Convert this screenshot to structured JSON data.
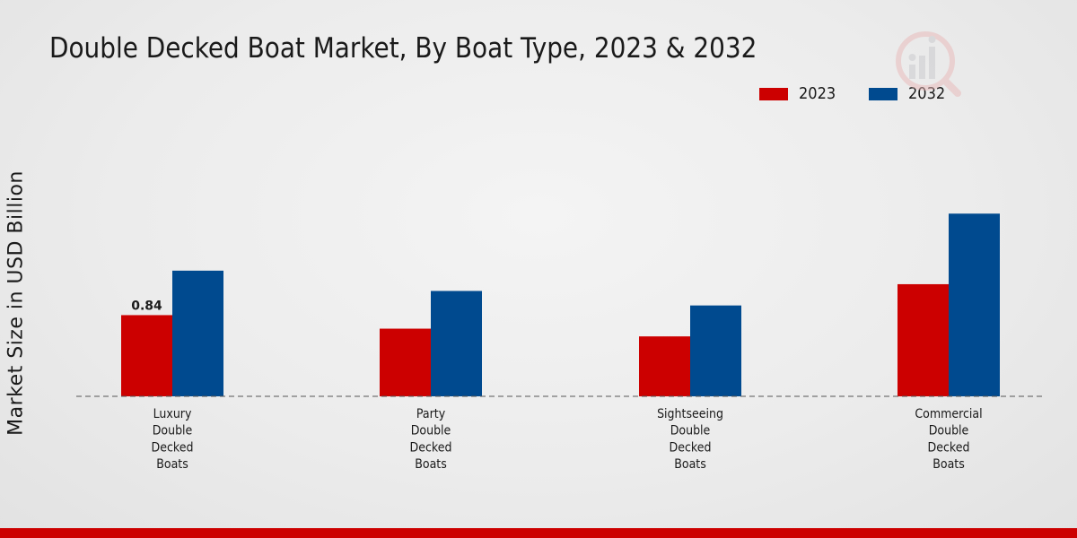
{
  "chart_data": {
    "type": "bar",
    "title": "Double Decked Boat Market, By Boat Type, 2023 & 2032",
    "xlabel": "",
    "ylabel": "Market Size in USD Billion",
    "categories": [
      [
        "Luxury",
        "Double",
        "Decked",
        "Boats"
      ],
      [
        "Party",
        "Double",
        "Decked",
        "Boats"
      ],
      [
        "Sightseeing",
        "Double",
        "Decked",
        "Boats"
      ],
      [
        "Commercial",
        "Double",
        "Decked",
        "Boats"
      ]
    ],
    "series": [
      {
        "name": "2023",
        "color": "#cc0000",
        "values": [
          0.84,
          0.7,
          0.62,
          1.16
        ]
      },
      {
        "name": "2032",
        "color": "#004a8f",
        "values": [
          1.3,
          1.09,
          0.94,
          1.89
        ]
      }
    ],
    "data_labels": [
      {
        "series": 0,
        "index": 0,
        "text": "0.84"
      }
    ],
    "ylim": [
      0,
      4.1
    ],
    "grid": false,
    "legend_position": "top-right"
  }
}
